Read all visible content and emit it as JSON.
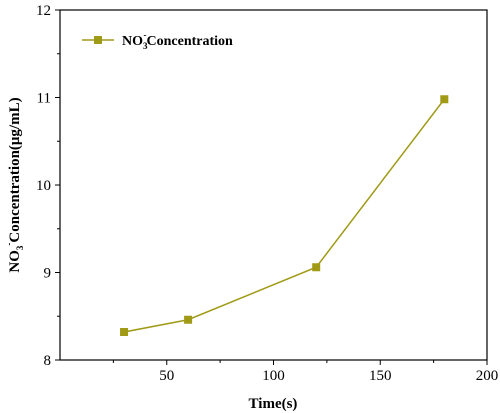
{
  "chart_data": {
    "type": "line",
    "xlabel": "Time(s)",
    "ylabel": {
      "prefix": "NO",
      "sub": "3",
      "sup": "-",
      "suffix": "Concentration(μg/mL)"
    },
    "legend": {
      "prefix": "NO",
      "sub": "3",
      "sup": "-",
      "suffix": "Concentration",
      "placement": "top-left"
    },
    "xlim": [
      0,
      200
    ],
    "ylim": [
      8,
      12
    ],
    "xticks": [
      50,
      100,
      150,
      200
    ],
    "yticks": [
      8,
      9,
      10,
      11,
      12
    ],
    "grid": false,
    "color": "#a09a16",
    "series": [
      {
        "x": [
          30,
          60,
          120,
          180
        ],
        "y": [
          8.32,
          8.46,
          9.06,
          10.98
        ]
      }
    ]
  }
}
